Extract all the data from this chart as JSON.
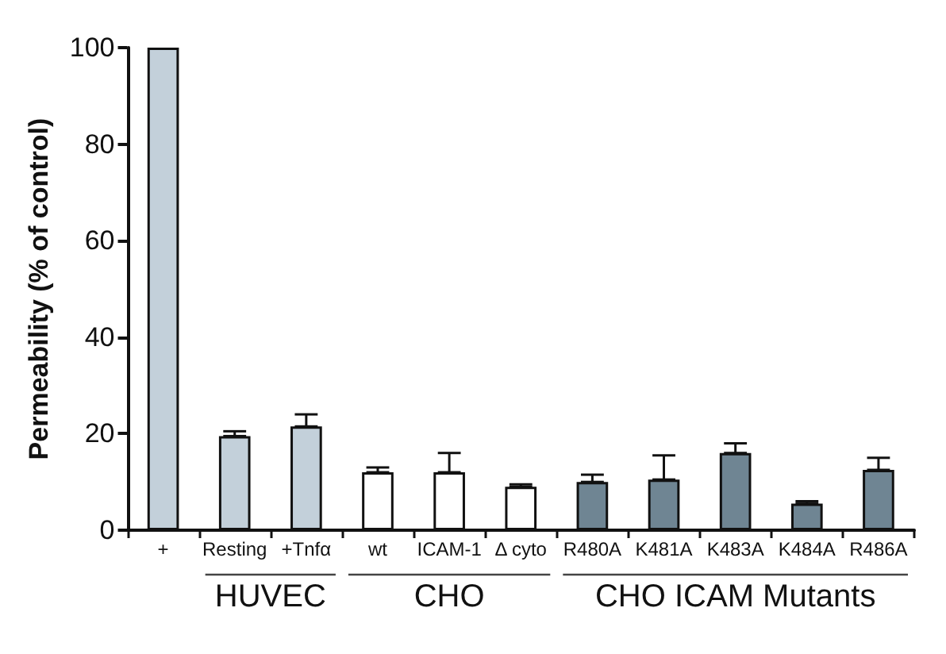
{
  "chart_data": {
    "type": "bar",
    "ylabel": "Permeability (% of control)",
    "categories": [
      "+",
      "Resting",
      "+Tnfα",
      "wt",
      "ICAM-1",
      "Δ cyto",
      "R480A",
      "K481A",
      "K483A",
      "K484A",
      "R486A"
    ],
    "values": [
      100,
      19.5,
      21.5,
      12,
      12,
      9,
      10,
      10.5,
      16,
      5.5,
      12.5
    ],
    "colors": [
      "#c3d0da",
      "#c3d0da",
      "#c3d0da",
      "#ffffff",
      "#ffffff",
      "#ffffff",
      "#6f8593",
      "#6f8593",
      "#6f8593",
      "#6f8593",
      "#6f8593"
    ],
    "errors": [
      null,
      [
        19.5,
        20.5
      ],
      [
        21.5,
        24
      ],
      [
        12,
        13
      ],
      [
        12,
        16
      ],
      [
        9,
        9.5
      ],
      [
        10,
        11.5
      ],
      [
        10.5,
        15.5
      ],
      [
        16,
        18
      ],
      [
        5.5,
        6
      ],
      [
        12.5,
        15
      ]
    ],
    "annotations": [
      "HUVEC",
      "CHO",
      "CHO ICAM Mutants"
    ],
    "ylim": [
      0,
      100
    ],
    "yticks": [
      0,
      20,
      40,
      60,
      80,
      100
    ],
    "grid": false
  }
}
